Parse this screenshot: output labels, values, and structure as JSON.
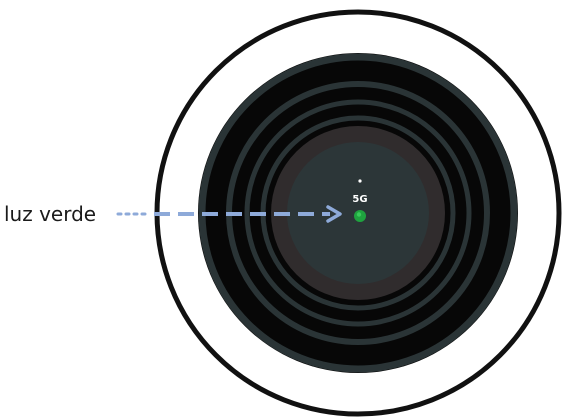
{
  "callout": {
    "label": "luz verde"
  },
  "device": {
    "band_label": "5G",
    "indicator_light": {
      "state": "on",
      "color": "#1fa33f"
    }
  },
  "colors": {
    "outer_ring_stroke": "#111111",
    "outer_ring_fill": "#ffffff",
    "disc_dark": "#070707",
    "ring_slate": "#2a3436",
    "inner_zone": "#302c2d",
    "center_face": "#2c3638",
    "arrow": "#8eaad9",
    "label_text": "#1a1a1a"
  }
}
